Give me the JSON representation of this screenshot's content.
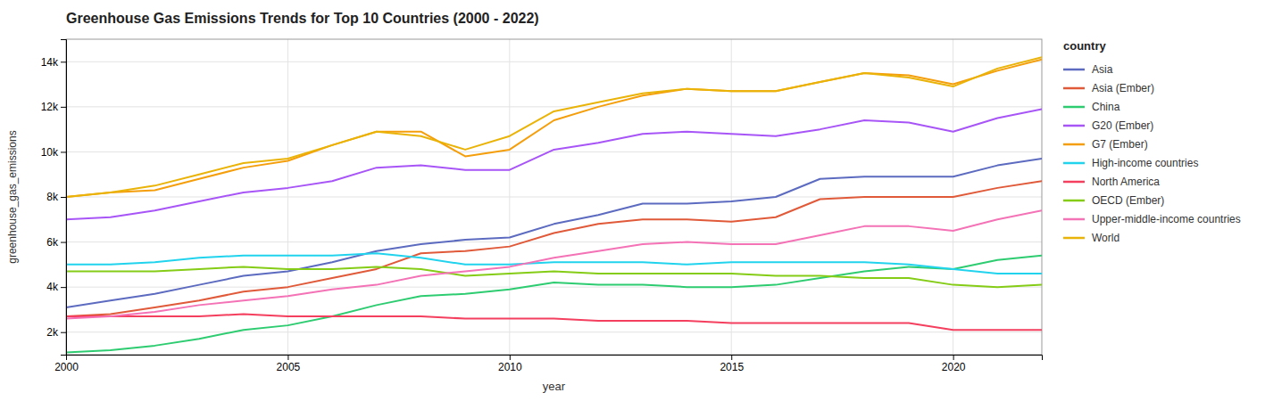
{
  "chart_data": {
    "type": "line",
    "title": "Greenhouse Gas Emissions Trends for Top 10 Countries (2000 - 2022)",
    "xlabel": "year",
    "ylabel": "greenhouse_gas_emissions",
    "legend_title": "country",
    "x": [
      2000,
      2001,
      2002,
      2003,
      2004,
      2005,
      2006,
      2007,
      2008,
      2009,
      2010,
      2011,
      2012,
      2013,
      2014,
      2015,
      2016,
      2017,
      2018,
      2019,
      2020,
      2021,
      2022
    ],
    "xlim": [
      2000,
      2022
    ],
    "xticks": [
      2000,
      2005,
      2010,
      2015,
      2020
    ],
    "ylim": [
      1000,
      15000
    ],
    "yticks": [
      {
        "value": 2000,
        "label": "2k"
      },
      {
        "value": 4000,
        "label": "4k"
      },
      {
        "value": 6000,
        "label": "6k"
      },
      {
        "value": 8000,
        "label": "8k"
      },
      {
        "value": 10000,
        "label": "10k"
      },
      {
        "value": 12000,
        "label": "12k"
      },
      {
        "value": 14000,
        "label": "14k"
      }
    ],
    "grid": true,
    "legend": "right",
    "series": [
      {
        "name": "Asia",
        "color": "#5c6bc0",
        "values": [
          3100,
          3400,
          3700,
          4100,
          4500,
          4700,
          5100,
          5600,
          5900,
          6100,
          6200,
          6800,
          7200,
          7700,
          7700,
          7800,
          8000,
          8800,
          8900,
          8900,
          8900,
          9400,
          9700
        ]
      },
      {
        "name": "Asia (Ember)",
        "color": "#e05a3a",
        "values": [
          2700,
          2800,
          3100,
          3400,
          3800,
          4000,
          4400,
          4800,
          5500,
          5600,
          5800,
          6400,
          6800,
          7000,
          7000,
          6900,
          7100,
          7900,
          8000,
          8000,
          8000,
          8400,
          8700
        ]
      },
      {
        "name": "China",
        "color": "#2ecc71",
        "values": [
          1100,
          1200,
          1400,
          1700,
          2100,
          2300,
          2700,
          3200,
          3600,
          3700,
          3900,
          4200,
          4100,
          4100,
          4000,
          4000,
          4100,
          4400,
          4700,
          4900,
          4800,
          5200,
          5400
        ]
      },
      {
        "name": "G20 (Ember)",
        "color": "#a855f7",
        "values": [
          7000,
          7100,
          7400,
          7800,
          8200,
          8400,
          8700,
          9300,
          9400,
          9200,
          9200,
          10100,
          10400,
          10800,
          10900,
          10800,
          10700,
          11000,
          11400,
          11300,
          10900,
          11500,
          11900
        ]
      },
      {
        "name": "G7 (Ember)",
        "color": "#f59e0b",
        "values": [
          8000,
          8200,
          8300,
          8800,
          9300,
          9600,
          10300,
          10900,
          10900,
          9800,
          10100,
          11400,
          12000,
          12500,
          12800,
          12700,
          12700,
          13100,
          13500,
          13400,
          13000,
          13600,
          14100
        ]
      },
      {
        "name": "High-income countries",
        "color": "#22d3ee",
        "values": [
          5000,
          5000,
          5100,
          5300,
          5400,
          5400,
          5400,
          5500,
          5300,
          5000,
          5000,
          5100,
          5100,
          5100,
          5000,
          5100,
          5100,
          5100,
          5100,
          5000,
          4800,
          4600,
          4600
        ]
      },
      {
        "name": "North America",
        "color": "#f43f5e",
        "values": [
          2700,
          2700,
          2700,
          2700,
          2800,
          2700,
          2700,
          2700,
          2700,
          2600,
          2600,
          2600,
          2500,
          2500,
          2500,
          2400,
          2400,
          2400,
          2400,
          2400,
          2100,
          2100,
          2100
        ]
      },
      {
        "name": "OECD (Ember)",
        "color": "#84cc16",
        "values": [
          4700,
          4700,
          4700,
          4800,
          4900,
          4800,
          4800,
          4900,
          4800,
          4500,
          4600,
          4700,
          4600,
          4600,
          4600,
          4600,
          4500,
          4500,
          4400,
          4400,
          4100,
          4000,
          4100
        ]
      },
      {
        "name": "Upper-middle-income countries",
        "color": "#f472b6",
        "values": [
          2600,
          2700,
          2900,
          3200,
          3400,
          3600,
          3900,
          4100,
          4500,
          4700,
          4900,
          5300,
          5600,
          5900,
          6000,
          5900,
          5900,
          6300,
          6700,
          6700,
          6500,
          7000,
          7400
        ]
      },
      {
        "name": "World",
        "color": "#eab308",
        "values": [
          8000,
          8200,
          8500,
          9000,
          9500,
          9700,
          10300,
          10900,
          10700,
          10100,
          10700,
          11800,
          12200,
          12600,
          12800,
          12700,
          12700,
          13100,
          13500,
          13300,
          12900,
          13700,
          14200
        ]
      }
    ]
  }
}
